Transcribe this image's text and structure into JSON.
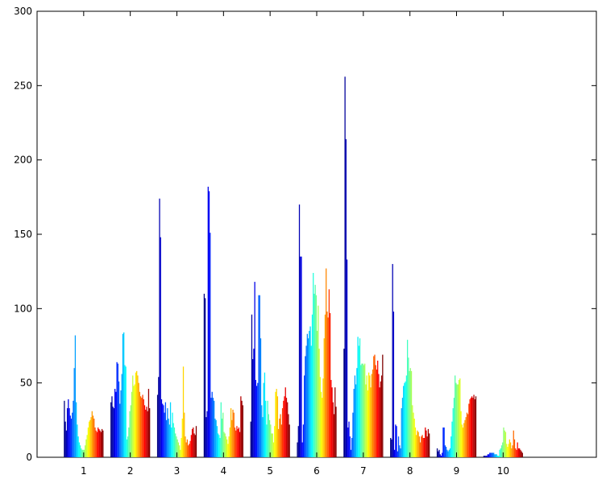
{
  "chart_data": {
    "type": "bar",
    "title": "",
    "xlabel": "",
    "ylabel": "",
    "grouped": true,
    "colormap": "jet",
    "legend": "none",
    "grid": false,
    "ylim": [
      0,
      300
    ],
    "yticks": [
      0,
      50,
      100,
      150,
      200,
      250,
      300
    ],
    "categories": [
      "1",
      "2",
      "3",
      "4",
      "5",
      "6",
      "7",
      "8",
      "9",
      "10"
    ],
    "series_per_group": 40,
    "groups": [
      {
        "category": "1",
        "values": [
          38,
          24,
          18,
          33,
          39,
          33,
          28,
          26,
          30,
          38,
          60,
          82,
          37,
          22,
          14,
          10,
          8,
          6,
          5,
          5,
          5,
          8,
          12,
          15,
          20,
          24,
          25,
          27,
          31,
          28,
          26,
          20,
          18,
          17,
          20,
          19,
          18,
          17,
          19,
          18
        ]
      },
      {
        "category": "2",
        "values": [
          37,
          41,
          34,
          33,
          46,
          44,
          64,
          63,
          51,
          36,
          45,
          56,
          83,
          84,
          62,
          61,
          12,
          14,
          20,
          31,
          35,
          44,
          55,
          48,
          49,
          57,
          58,
          55,
          50,
          44,
          41,
          40,
          42,
          39,
          35,
          32,
          34,
          31,
          46,
          33
        ]
      },
      {
        "category": "3",
        "values": [
          42,
          54,
          174,
          148,
          39,
          36,
          35,
          30,
          37,
          25,
          33,
          26,
          22,
          37,
          20,
          30,
          23,
          20,
          16,
          14,
          12,
          10,
          8,
          5,
          13,
          26,
          61,
          30,
          14,
          10,
          12,
          8,
          9,
          11,
          15,
          19,
          20,
          16,
          15,
          21
        ]
      },
      {
        "category": "4",
        "values": [
          110,
          107,
          27,
          31,
          182,
          179,
          151,
          40,
          44,
          40,
          38,
          26,
          25,
          21,
          16,
          15,
          13,
          37,
          26,
          30,
          17,
          16,
          14,
          12,
          9,
          14,
          20,
          33,
          25,
          32,
          30,
          20,
          18,
          21,
          19,
          20,
          17,
          41,
          38,
          35
        ]
      },
      {
        "category": "5",
        "values": [
          24,
          96,
          66,
          73,
          118,
          52,
          48,
          50,
          109,
          109,
          80,
          35,
          27,
          50,
          57,
          38,
          22,
          38,
          29,
          25,
          22,
          16,
          16,
          10,
          21,
          44,
          46,
          41,
          19,
          26,
          29,
          22,
          33,
          38,
          41,
          47,
          40,
          37,
          29,
          22
        ]
      },
      {
        "category": "6",
        "values": [
          10,
          21,
          170,
          135,
          135,
          10,
          22,
          55,
          68,
          75,
          83,
          80,
          85,
          88,
          75,
          96,
          124,
          110,
          116,
          109,
          85,
          102,
          73,
          54,
          44,
          40,
          53,
          80,
          96,
          127,
          98,
          94,
          113,
          97,
          52,
          47,
          37,
          29,
          47,
          34
        ]
      },
      {
        "category": "7",
        "values": [
          73,
          256,
          214,
          133,
          20,
          24,
          14,
          5,
          13,
          30,
          46,
          55,
          49,
          60,
          81,
          75,
          80,
          62,
          63,
          63,
          62,
          63,
          49,
          55,
          45,
          57,
          55,
          47,
          56,
          59,
          68,
          69,
          62,
          59,
          65,
          56,
          47,
          51,
          55,
          69
        ]
      },
      {
        "category": "8",
        "values": [
          13,
          12,
          130,
          98,
          5,
          22,
          21,
          4,
          14,
          8,
          6,
          33,
          40,
          48,
          50,
          51,
          55,
          79,
          67,
          58,
          60,
          58,
          35,
          30,
          26,
          20,
          15,
          18,
          17,
          14,
          10,
          14,
          15,
          13,
          13,
          20,
          18,
          14,
          19,
          16
        ]
      },
      {
        "category": "9",
        "values": [
          6,
          4,
          5,
          2,
          1,
          3,
          20,
          20,
          8,
          7,
          5,
          4,
          5,
          6,
          14,
          24,
          33,
          40,
          55,
          50,
          49,
          49,
          52,
          53,
          31,
          22,
          20,
          23,
          25,
          27,
          30,
          29,
          36,
          39,
          40,
          41,
          40,
          42,
          39,
          41
        ]
      },
      {
        "category": "10",
        "values": [
          1,
          1,
          1,
          1,
          2,
          2,
          3,
          3,
          3,
          3,
          3,
          2,
          2,
          2,
          1,
          1,
          5,
          6,
          8,
          10,
          20,
          18,
          17,
          9,
          7,
          9,
          12,
          10,
          6,
          8,
          18,
          12,
          6,
          5,
          10,
          6,
          6,
          5,
          4,
          3
        ]
      }
    ]
  }
}
